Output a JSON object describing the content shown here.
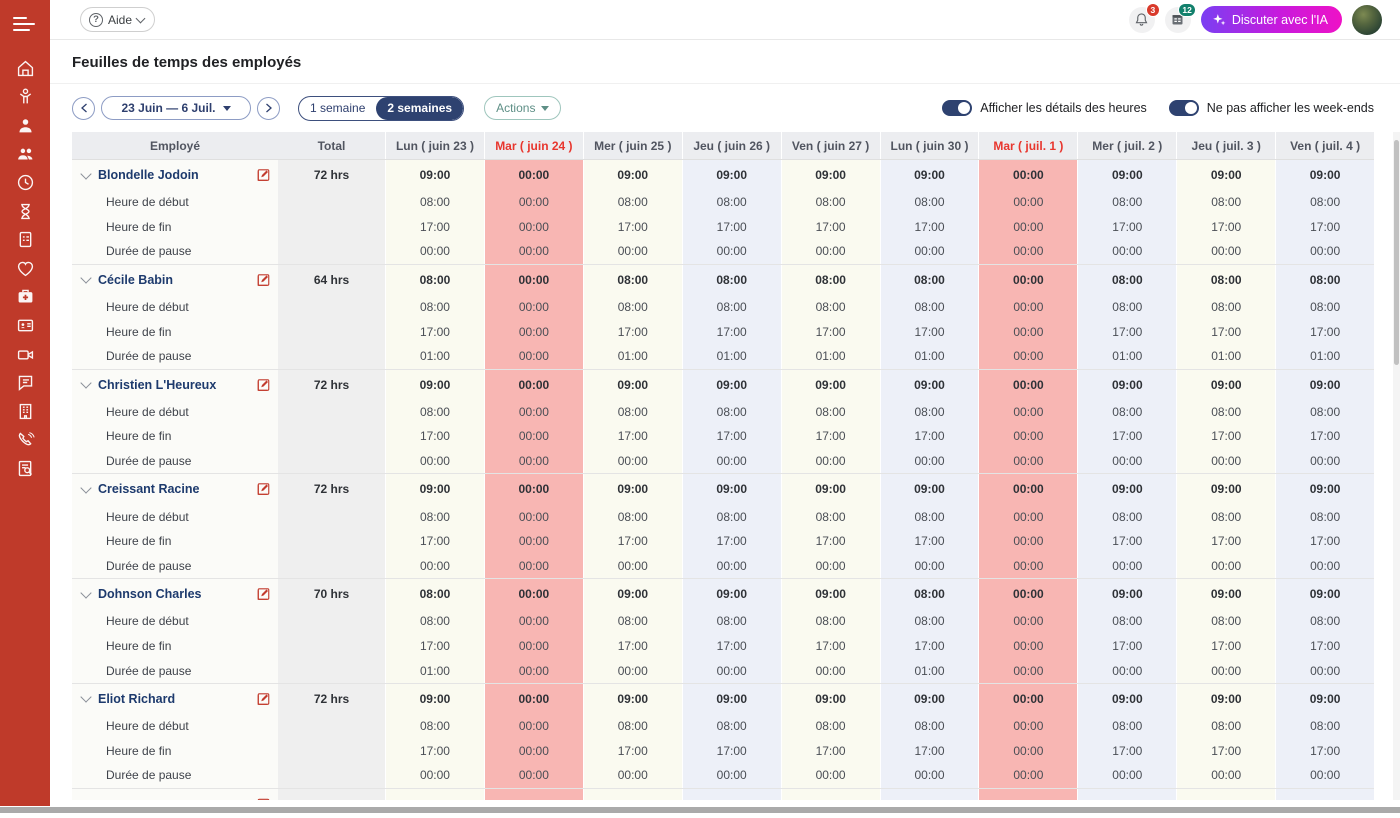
{
  "colors": {
    "sidebar": "#bf3a2a",
    "navy": "#2e4270",
    "accent_red": "#e8362e",
    "pink_col": "#f8b6b3",
    "cream_col": "#fafaf0",
    "blue_col": "#edf0f8",
    "ai_gradient_start": "#7a3ff2",
    "ai_gradient_end": "#ee12c6",
    "teal_badge": "#12806c"
  },
  "sidebar": {
    "icons": [
      "home-icon",
      "child-icon",
      "person-icon",
      "people-icon",
      "clock-icon",
      "hourglass-icon",
      "clipboard-list-icon",
      "heart-icon",
      "first-aid-icon",
      "id-card-icon",
      "video-camera-icon",
      "chat-bubble-icon",
      "building-icon",
      "phone-icon",
      "report-search-icon"
    ]
  },
  "topbar": {
    "help_label": "Aide",
    "bell_badge": "3",
    "calendar_badge": "12",
    "chat_button_label": "Discuter avec l'IA"
  },
  "page": {
    "title": "Feuilles de temps des employés"
  },
  "toolbar": {
    "date_range": "23 Juin — 6 Juil.",
    "week_options": [
      "1 semaine",
      "2 semaines"
    ],
    "selected_week_option": "2 semaines",
    "actions_label": "Actions",
    "toggle_hours_label": "Afficher les détails des heures",
    "toggle_weekends_label": "Ne pas afficher les week-ends",
    "toggle_hours_on": true,
    "toggle_weekends_on": true
  },
  "table": {
    "employee_header": "Employé",
    "total_header": "Total",
    "day_headers": [
      "Lun ( juin 23 )",
      "Mar ( juin 24 )",
      "Mer ( juin 25 )",
      "Jeu ( juin 26 )",
      "Ven ( juin 27 )",
      "Lun ( juin 30 )",
      "Mar ( juil. 1 )",
      "Mer ( juil. 2 )",
      "Jeu ( juil. 3 )",
      "Ven ( juil. 4 )"
    ],
    "day_header_red": [
      false,
      true,
      false,
      false,
      false,
      false,
      true,
      false,
      false,
      false
    ],
    "day_col_styles": [
      "cream",
      "pink",
      "cream",
      "blue",
      "cream",
      "blue",
      "pink",
      "blue",
      "cream",
      "blue"
    ],
    "sub_labels": [
      "Heure de début",
      "Heure de fin",
      "Durée de pause"
    ],
    "employees": [
      {
        "name": "Blondelle Jodoin",
        "total": "72 hrs",
        "hours": [
          "09:00",
          "00:00",
          "09:00",
          "09:00",
          "09:00",
          "09:00",
          "00:00",
          "09:00",
          "09:00",
          "09:00"
        ],
        "start": [
          "08:00",
          "00:00",
          "08:00",
          "08:00",
          "08:00",
          "08:00",
          "00:00",
          "08:00",
          "08:00",
          "08:00"
        ],
        "end": [
          "17:00",
          "00:00",
          "17:00",
          "17:00",
          "17:00",
          "17:00",
          "00:00",
          "17:00",
          "17:00",
          "17:00"
        ],
        "pause": [
          "00:00",
          "00:00",
          "00:00",
          "00:00",
          "00:00",
          "00:00",
          "00:00",
          "00:00",
          "00:00",
          "00:00"
        ]
      },
      {
        "name": "Cécile Babin",
        "total": "64 hrs",
        "hours": [
          "08:00",
          "00:00",
          "08:00",
          "08:00",
          "08:00",
          "08:00",
          "00:00",
          "08:00",
          "08:00",
          "08:00"
        ],
        "start": [
          "08:00",
          "00:00",
          "08:00",
          "08:00",
          "08:00",
          "08:00",
          "00:00",
          "08:00",
          "08:00",
          "08:00"
        ],
        "end": [
          "17:00",
          "00:00",
          "17:00",
          "17:00",
          "17:00",
          "17:00",
          "00:00",
          "17:00",
          "17:00",
          "17:00"
        ],
        "pause": [
          "01:00",
          "00:00",
          "01:00",
          "01:00",
          "01:00",
          "01:00",
          "00:00",
          "01:00",
          "01:00",
          "01:00"
        ]
      },
      {
        "name": "Christien L'Heureux",
        "total": "72 hrs",
        "hours": [
          "09:00",
          "00:00",
          "09:00",
          "09:00",
          "09:00",
          "09:00",
          "00:00",
          "09:00",
          "09:00",
          "09:00"
        ],
        "start": [
          "08:00",
          "00:00",
          "08:00",
          "08:00",
          "08:00",
          "08:00",
          "00:00",
          "08:00",
          "08:00",
          "08:00"
        ],
        "end": [
          "17:00",
          "00:00",
          "17:00",
          "17:00",
          "17:00",
          "17:00",
          "00:00",
          "17:00",
          "17:00",
          "17:00"
        ],
        "pause": [
          "00:00",
          "00:00",
          "00:00",
          "00:00",
          "00:00",
          "00:00",
          "00:00",
          "00:00",
          "00:00",
          "00:00"
        ]
      },
      {
        "name": "Creissant Racine",
        "total": "72 hrs",
        "hours": [
          "09:00",
          "00:00",
          "09:00",
          "09:00",
          "09:00",
          "09:00",
          "00:00",
          "09:00",
          "09:00",
          "09:00"
        ],
        "start": [
          "08:00",
          "00:00",
          "08:00",
          "08:00",
          "08:00",
          "08:00",
          "00:00",
          "08:00",
          "08:00",
          "08:00"
        ],
        "end": [
          "17:00",
          "00:00",
          "17:00",
          "17:00",
          "17:00",
          "17:00",
          "00:00",
          "17:00",
          "17:00",
          "17:00"
        ],
        "pause": [
          "00:00",
          "00:00",
          "00:00",
          "00:00",
          "00:00",
          "00:00",
          "00:00",
          "00:00",
          "00:00",
          "00:00"
        ]
      },
      {
        "name": "Dohnson Charles",
        "total": "70 hrs",
        "hours": [
          "08:00",
          "00:00",
          "09:00",
          "09:00",
          "09:00",
          "08:00",
          "00:00",
          "09:00",
          "09:00",
          "09:00"
        ],
        "start": [
          "08:00",
          "00:00",
          "08:00",
          "08:00",
          "08:00",
          "08:00",
          "00:00",
          "08:00",
          "08:00",
          "08:00"
        ],
        "end": [
          "17:00",
          "00:00",
          "17:00",
          "17:00",
          "17:00",
          "17:00",
          "00:00",
          "17:00",
          "17:00",
          "17:00"
        ],
        "pause": [
          "01:00",
          "00:00",
          "00:00",
          "00:00",
          "00:00",
          "01:00",
          "00:00",
          "00:00",
          "00:00",
          "00:00"
        ]
      },
      {
        "name": "Eliot Richard",
        "total": "72 hrs",
        "hours": [
          "09:00",
          "00:00",
          "09:00",
          "09:00",
          "09:00",
          "09:00",
          "00:00",
          "09:00",
          "09:00",
          "09:00"
        ],
        "start": [
          "08:00",
          "00:00",
          "08:00",
          "08:00",
          "08:00",
          "08:00",
          "00:00",
          "08:00",
          "08:00",
          "08:00"
        ],
        "end": [
          "17:00",
          "00:00",
          "17:00",
          "17:00",
          "17:00",
          "17:00",
          "00:00",
          "17:00",
          "17:00",
          "17:00"
        ],
        "pause": [
          "00:00",
          "00:00",
          "00:00",
          "00:00",
          "00:00",
          "00:00",
          "00:00",
          "00:00",
          "00:00",
          "00:00"
        ]
      }
    ],
    "has_partial_next_row": true
  }
}
